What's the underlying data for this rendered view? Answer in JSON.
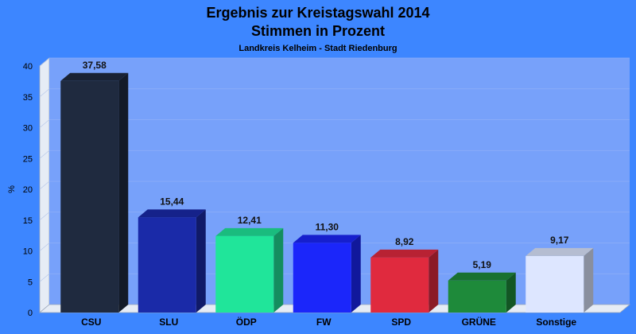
{
  "chart_data": {
    "type": "bar",
    "title": "Ergebnis zur Kreistagswahl 2014",
    "title_line2": "Stimmen in Prozent",
    "subtitle": "Landkreis Kelheim - Stadt Riedenburg",
    "xlabel": "",
    "ylabel": "%",
    "ylim": [
      0,
      40
    ],
    "yticks": [
      0,
      5,
      10,
      15,
      20,
      25,
      30,
      35,
      40
    ],
    "grid": true,
    "categories": [
      "CSU",
      "SLU",
      "ÖDP",
      "FW",
      "SPD",
      "GRÜNE",
      "Sonstige"
    ],
    "values": [
      37.58,
      15.44,
      12.41,
      11.3,
      8.92,
      5.19,
      9.17
    ],
    "value_labels": [
      "37,58",
      "15,44",
      "12,41",
      "11,30",
      "8,92",
      "5,19",
      "9,17"
    ],
    "colors": [
      "#1f2a3f",
      "#1a2aa8",
      "#20e59a",
      "#1b26fa",
      "#e02a3e",
      "#1e8a3a",
      "#dde6ff"
    ]
  }
}
